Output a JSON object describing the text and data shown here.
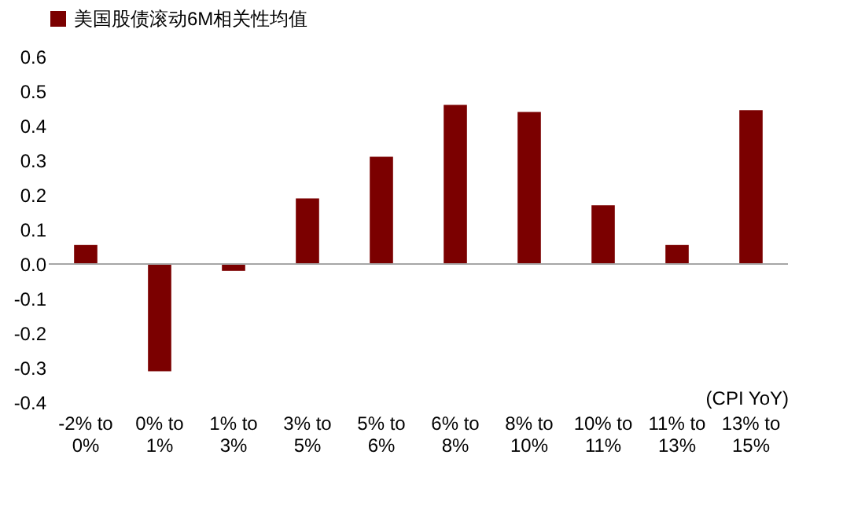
{
  "chart_data": {
    "type": "bar",
    "xlabel": "(CPI YoY)",
    "categories": [
      "-2% to 0%",
      "0% to 1%",
      "1% to 3%",
      "3% to 5%",
      "5% to 6%",
      "6% to 8%",
      "8% to 10%",
      "10% to 11%",
      "11% to 13%",
      "13% to 15%"
    ],
    "series": [
      {
        "name": "美国股债滚动6M相关性均值",
        "color": "#7b0000",
        "values": [
          0.055,
          -0.31,
          -0.02,
          0.19,
          0.31,
          0.46,
          0.44,
          0.17,
          0.055,
          0.445
        ]
      }
    ],
    "ylim": [
      -0.4,
      0.6
    ],
    "yticks": [
      -0.4,
      -0.3,
      -0.2,
      -0.1,
      {
        "value": 0,
        "label": "0.0"
      },
      0.1,
      0.2,
      0.3,
      0.4,
      0.5,
      0.6
    ],
    "ref_lines": [
      {
        "axis": "y",
        "value": 0,
        "color": "#a6a6a6"
      }
    ],
    "grid": false,
    "legend": "top"
  }
}
